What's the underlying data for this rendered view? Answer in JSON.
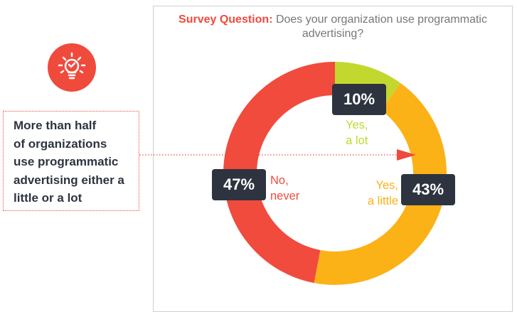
{
  "chart_data": {
    "type": "pie",
    "donut": true,
    "title": "Survey Question:",
    "subtitle": "Does your organization use programmatic advertising?",
    "slices": [
      {
        "label": "Yes, a lot",
        "label_lines": [
          "Yes,",
          "a lot"
        ],
        "value": 10,
        "display": "10%",
        "color": "#c2d82e"
      },
      {
        "label": "Yes, a little",
        "label_lines": [
          "Yes,",
          "a little"
        ],
        "value": 43,
        "display": "43%",
        "color": "#fbb217"
      },
      {
        "label": "No, never",
        "label_lines": [
          "No,",
          "never"
        ],
        "value": 47,
        "display": "47%",
        "color": "#f04b3d"
      }
    ]
  },
  "callout": {
    "lines": [
      "More than half",
      "of organizations",
      "use programmatic",
      "advertising either a",
      "little or a lot"
    ],
    "icon": "lightbulb-check-icon",
    "accent": "#ef4a3c"
  }
}
